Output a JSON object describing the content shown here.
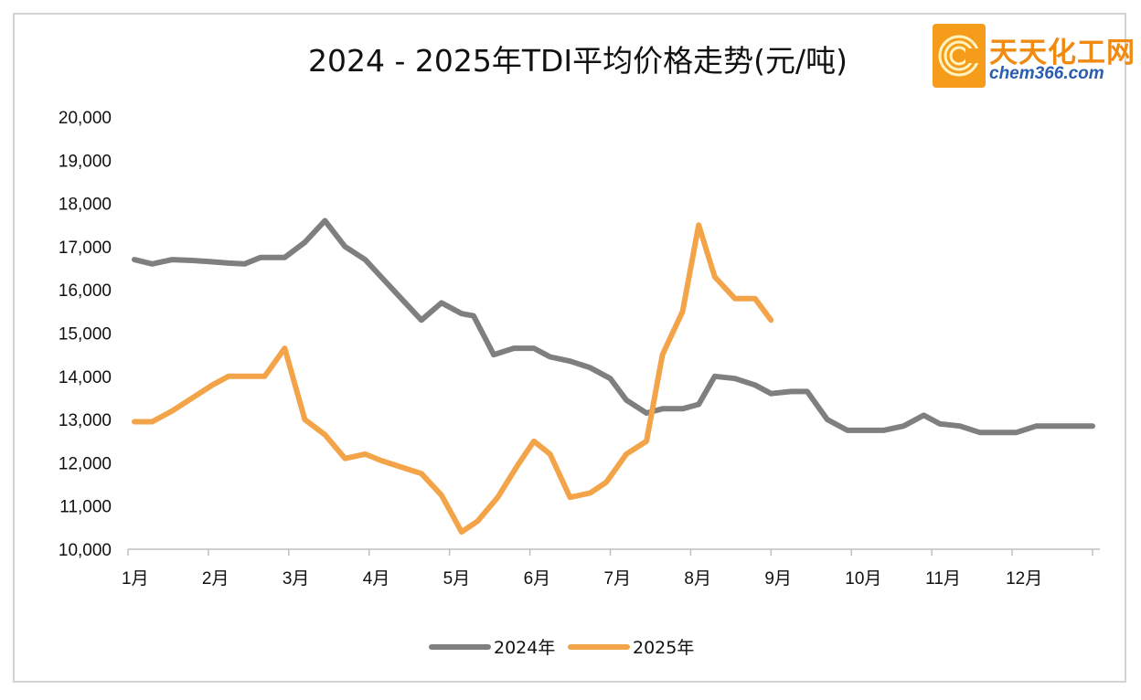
{
  "logo": {
    "cn_text": "天天化工网",
    "en_text": "chem366.com",
    "icon": "logo-c-mark-icon",
    "badge_color": "#f59c1a",
    "cn_color": "#f08a10",
    "en_color": "#2a5db0"
  },
  "chart_data": {
    "type": "line",
    "title": "2024 - 2025年TDI平均价格走势(元/吨)",
    "xlabel": "",
    "ylabel": "",
    "categories": [
      "1月",
      "2月",
      "3月",
      "4月",
      "5月",
      "6月",
      "7月",
      "8月",
      "9月",
      "10月",
      "11月",
      "12月"
    ],
    "x_range": [
      1,
      13
    ],
    "ylim": [
      10000,
      20000
    ],
    "yticks": [
      10000,
      11000,
      12000,
      13000,
      14000,
      15000,
      16000,
      17000,
      18000,
      19000,
      20000
    ],
    "ytick_labels": [
      "10,000",
      "11,000",
      "12,000",
      "13,000",
      "14,000",
      "15,000",
      "16,000",
      "17,000",
      "18,000",
      "19,000",
      "20,000"
    ],
    "grid": false,
    "legend_position": "bottom",
    "series": [
      {
        "name": "2024年",
        "color": "#7f7f7f",
        "x": [
          1.08,
          1.3,
          1.55,
          1.8,
          2.05,
          2.25,
          2.45,
          2.65,
          2.95,
          3.2,
          3.45,
          3.7,
          3.95,
          4.15,
          4.4,
          4.65,
          4.9,
          5.15,
          5.3,
          5.55,
          5.8,
          6.05,
          6.25,
          6.5,
          6.75,
          7.0,
          7.2,
          7.45,
          7.65,
          7.9,
          8.1,
          8.3,
          8.55,
          8.8,
          9.0,
          9.25,
          9.45,
          9.7,
          9.95,
          10.15,
          10.4,
          10.65,
          10.9,
          11.1,
          11.35,
          11.6,
          11.85,
          12.05,
          12.3,
          12.5,
          12.75,
          13.0
        ],
        "values": [
          16700,
          16600,
          16700,
          16680,
          16650,
          16620,
          16600,
          16750,
          16750,
          17100,
          17600,
          17000,
          16700,
          16300,
          15800,
          15300,
          15700,
          15450,
          15400,
          14500,
          14650,
          14650,
          14450,
          14350,
          14200,
          13950,
          13450,
          13150,
          13250,
          13250,
          13350,
          14000,
          13950,
          13800,
          13600,
          13650,
          13650,
          13000,
          12750,
          12750,
          12750,
          12850,
          13100,
          12900,
          12850,
          12700,
          12700,
          12700,
          12850,
          12850,
          12850,
          12850
        ]
      },
      {
        "name": "2025年",
        "color": "#f4a448",
        "x": [
          1.08,
          1.3,
          1.55,
          1.8,
          2.05,
          2.25,
          2.45,
          2.7,
          2.95,
          3.2,
          3.45,
          3.7,
          3.95,
          4.15,
          4.4,
          4.65,
          4.9,
          5.15,
          5.35,
          5.6,
          5.85,
          6.05,
          6.25,
          6.5,
          6.75,
          6.95,
          7.2,
          7.45,
          7.65,
          7.9,
          8.1,
          8.3,
          8.55,
          8.8,
          9.0
        ],
        "values": [
          12950,
          12950,
          13200,
          13500,
          13800,
          14000,
          14000,
          14000,
          14650,
          13000,
          12650,
          12100,
          12200,
          12050,
          11900,
          11750,
          11250,
          10400,
          10650,
          11200,
          11950,
          12500,
          12200,
          11200,
          11300,
          11550,
          12200,
          12500,
          14500,
          15500,
          17500,
          16300,
          15800,
          15800,
          15300
        ]
      }
    ]
  }
}
